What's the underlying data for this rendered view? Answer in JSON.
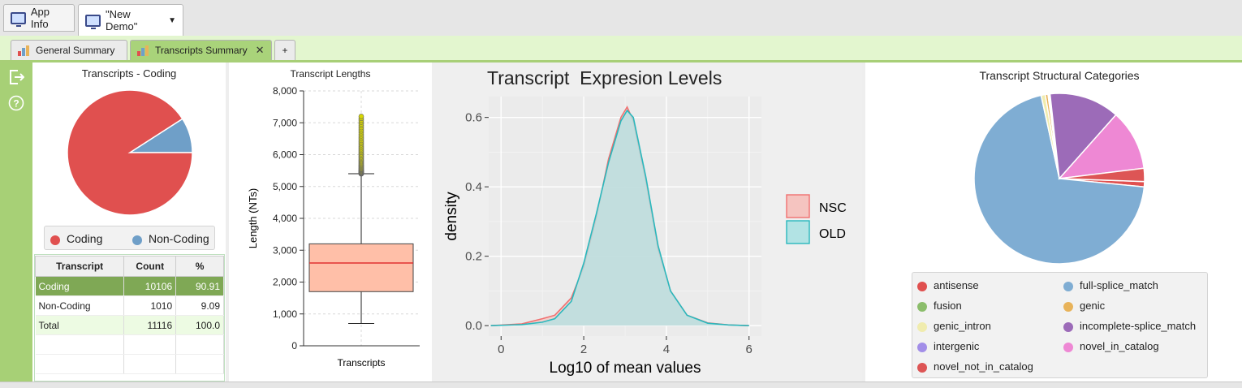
{
  "app_tabs": [
    {
      "label": "App Info"
    },
    {
      "label": "\"New Demo\""
    }
  ],
  "sub_tabs": [
    {
      "label": "General Summary"
    },
    {
      "label": "Transcripts Summary"
    },
    {
      "label": "+"
    }
  ],
  "coding_panel": {
    "title": "Transcripts - Coding",
    "legend": [
      {
        "label": "Coding",
        "color": "#e0504f"
      },
      {
        "label": "Non-Coding",
        "color": "#6f9fc8"
      }
    ],
    "pie_values": [
      90.91,
      9.09
    ],
    "table": {
      "headers": [
        "Transcript",
        "Count",
        "%"
      ],
      "rows": [
        [
          "Coding",
          "10106",
          "90.91"
        ],
        [
          "Non-Coding",
          "1010",
          "9.09"
        ],
        [
          "Total",
          "11116",
          "100.0"
        ]
      ]
    }
  },
  "chart_data": [
    {
      "type": "box",
      "title": "Transcript Lengths",
      "ylabel": "Length (NTs)",
      "categories": [
        "Transcripts"
      ],
      "ylim": [
        0,
        8000
      ],
      "yticks": [
        "0",
        "1,000",
        "2,000",
        "3,000",
        "4,000",
        "5,000",
        "6,000",
        "7,000",
        "8,000"
      ],
      "box": {
        "whisker_low": 700,
        "q1": 1700,
        "median": 2600,
        "q3": 3200,
        "whisker_high": 5400,
        "outliers_max": 7200
      },
      "colors": {
        "box": "#ffbfa8",
        "median": "#e03030"
      }
    },
    {
      "type": "area",
      "title": "Transcript  Expresion Levels",
      "xlabel": "Log10 of mean values",
      "ylabel": "density",
      "xlim": [
        -0.3,
        6.3
      ],
      "ylim": [
        -0.03,
        0.66
      ],
      "xticks": [
        "0",
        "2",
        "4",
        "6"
      ],
      "yticks": [
        "0.0",
        "0.2",
        "0.4",
        "0.6"
      ],
      "x": [
        -0.25,
        0.5,
        1.0,
        1.3,
        1.7,
        2.0,
        2.3,
        2.6,
        2.9,
        3.05,
        3.2,
        3.5,
        3.8,
        4.1,
        4.5,
        5.0,
        5.5,
        6.0
      ],
      "series": [
        {
          "name": "NSC",
          "color": "#f07070",
          "fill": "#f5c4c0",
          "values": [
            0.0,
            0.005,
            0.02,
            0.03,
            0.08,
            0.17,
            0.31,
            0.48,
            0.6,
            0.63,
            0.59,
            0.42,
            0.22,
            0.1,
            0.03,
            0.008,
            0.002,
            0.0
          ]
        },
        {
          "name": "OLD",
          "color": "#2ab8bd",
          "fill": "#b2e3e4",
          "values": [
            0.0,
            0.003,
            0.01,
            0.02,
            0.07,
            0.18,
            0.32,
            0.47,
            0.59,
            0.62,
            0.6,
            0.43,
            0.23,
            0.1,
            0.03,
            0.007,
            0.002,
            0.0
          ]
        }
      ]
    },
    {
      "type": "pie",
      "title": "Transcript Structural Categories",
      "categories": [
        "antisense",
        "full-splice_match",
        "fusion",
        "genic",
        "genic_intron",
        "incomplete-splice_match",
        "intergenic",
        "novel_in_catalog",
        "novel_not_in_catalog"
      ],
      "values": [
        1.0,
        70.0,
        0.2,
        0.5,
        0.8,
        13.3,
        0.2,
        11.5,
        2.5
      ],
      "colors": [
        "#e0504f",
        "#7fadd3",
        "#8bbd6b",
        "#e8b35a",
        "#f0ecae",
        "#9c6bb8",
        "#a28ee8",
        "#ee88d4",
        "#dd5555"
      ]
    }
  ]
}
